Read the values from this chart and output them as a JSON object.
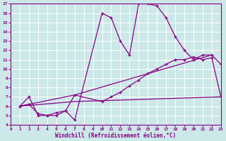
{
  "xlabel": "Windchill (Refroidissement éolien,°C)",
  "ylabel": "",
  "background_color": "#cce8e8",
  "grid_color": "#ffffff",
  "line_color": "#880088",
  "xlim": [
    0,
    23
  ],
  "ylim": [
    4,
    17
  ],
  "xticks": [
    0,
    1,
    2,
    3,
    4,
    5,
    6,
    7,
    8,
    9,
    10,
    11,
    12,
    13,
    14,
    15,
    16,
    17,
    18,
    19,
    20,
    21,
    22,
    23
  ],
  "yticks": [
    4,
    5,
    6,
    7,
    8,
    9,
    10,
    11,
    12,
    13,
    14,
    15,
    16,
    17
  ],
  "series1_x": [
    1,
    2,
    3,
    4,
    5,
    6,
    7,
    10,
    11,
    12,
    13,
    14,
    15,
    16,
    17,
    18,
    19,
    20,
    21,
    22,
    23
  ],
  "series1_y": [
    6.0,
    7.0,
    5.0,
    5.0,
    5.0,
    5.5,
    4.5,
    16.0,
    15.5,
    13.0,
    11.5,
    17.0,
    17.0,
    16.8,
    15.5,
    13.5,
    12.0,
    11.0,
    11.5,
    11.5,
    10.5
  ],
  "series2_x": [
    1,
    2,
    3,
    4,
    5,
    6,
    7,
    10,
    11,
    12,
    13,
    14,
    15,
    16,
    17,
    18,
    19,
    20,
    21,
    22,
    23
  ],
  "series2_y": [
    6.0,
    6.2,
    5.2,
    5.0,
    5.3,
    5.5,
    7.2,
    6.5,
    7.0,
    7.5,
    8.2,
    8.8,
    9.5,
    10.0,
    10.5,
    11.0,
    11.0,
    11.3,
    11.0,
    11.2,
    7.0
  ],
  "series3_x": [
    1,
    7,
    22
  ],
  "series3_y": [
    6.0,
    7.2,
    11.5
  ],
  "series4_x": [
    1,
    7,
    23
  ],
  "series4_y": [
    6.0,
    6.5,
    7.0
  ]
}
